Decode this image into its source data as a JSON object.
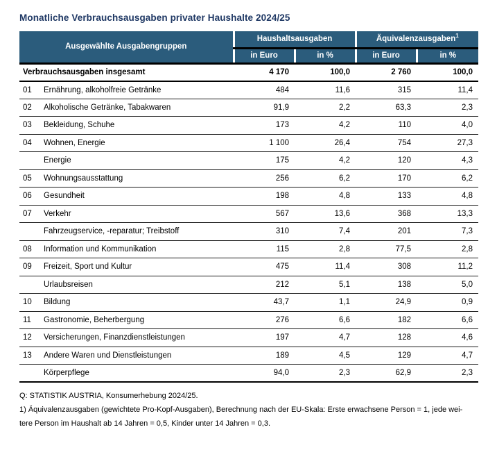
{
  "colors": {
    "header_bg": "#2B5C7C",
    "title_color": "#1F3864",
    "border_color": "#000000"
  },
  "chart_data": {
    "type": "table",
    "title": "Monatliche Verbrauchsausgaben privater Haushalte 2024/25",
    "header": {
      "row_header": "Ausgewählte Ausgabengruppen",
      "group1": "Haushaltsausgaben",
      "group2": "Äquivalenzausgaben",
      "group2_footnote_marker": "1",
      "sub_euro": "in Euro",
      "sub_pct": "in %"
    },
    "total_row": {
      "label": "Verbrauchsausgaben insgesamt",
      "hh_euro": "4 170",
      "hh_pct": "100,0",
      "aeq_euro": "2 760",
      "aeq_pct": "100,0"
    },
    "rows": [
      {
        "code": "01",
        "label": "Ernährung, alkoholfreie Getränke",
        "hh_euro": "484",
        "hh_pct": "11,6",
        "aeq_euro": "315",
        "aeq_pct": "11,4"
      },
      {
        "code": "02",
        "label": "Alkoholische Getränke, Tabakwaren",
        "hh_euro": "91,9",
        "hh_pct": "2,2",
        "aeq_euro": "63,3",
        "aeq_pct": "2,3"
      },
      {
        "code": "03",
        "label": "Bekleidung, Schuhe",
        "hh_euro": "173",
        "hh_pct": "4,2",
        "aeq_euro": "110",
        "aeq_pct": "4,0"
      },
      {
        "code": "04",
        "label": "Wohnen, Energie",
        "hh_euro": "1 100",
        "hh_pct": "26,4",
        "aeq_euro": "754",
        "aeq_pct": "27,3"
      },
      {
        "code": "",
        "label": "Energie",
        "hh_euro": "175",
        "hh_pct": "4,2",
        "aeq_euro": "120",
        "aeq_pct": "4,3"
      },
      {
        "code": "05",
        "label": "Wohnungsausstattung",
        "hh_euro": "256",
        "hh_pct": "6,2",
        "aeq_euro": "170",
        "aeq_pct": "6,2"
      },
      {
        "code": "06",
        "label": "Gesundheit",
        "hh_euro": "198",
        "hh_pct": "4,8",
        "aeq_euro": "133",
        "aeq_pct": "4,8"
      },
      {
        "code": "07",
        "label": "Verkehr",
        "hh_euro": "567",
        "hh_pct": "13,6",
        "aeq_euro": "368",
        "aeq_pct": "13,3"
      },
      {
        "code": "",
        "label": "Fahrzeugservice, -reparatur; Treibstoff",
        "hh_euro": "310",
        "hh_pct": "7,4",
        "aeq_euro": "201",
        "aeq_pct": "7,3"
      },
      {
        "code": "08",
        "label": "Information und Kommunikation",
        "hh_euro": "115",
        "hh_pct": "2,8",
        "aeq_euro": "77,5",
        "aeq_pct": "2,8"
      },
      {
        "code": "09",
        "label": "Freizeit, Sport und Kultur",
        "hh_euro": "475",
        "hh_pct": "11,4",
        "aeq_euro": "308",
        "aeq_pct": "11,2"
      },
      {
        "code": "",
        "label": "Urlaubsreisen",
        "hh_euro": "212",
        "hh_pct": "5,1",
        "aeq_euro": "138",
        "aeq_pct": "5,0"
      },
      {
        "code": "10",
        "label": "Bildung",
        "hh_euro": "43,7",
        "hh_pct": "1,1",
        "aeq_euro": "24,9",
        "aeq_pct": "0,9"
      },
      {
        "code": "11",
        "label": "Gastronomie, Beherbergung",
        "hh_euro": "276",
        "hh_pct": "6,6",
        "aeq_euro": "182",
        "aeq_pct": "6,6"
      },
      {
        "code": "12",
        "label": "Versicherungen, Finanzdienstleistungen",
        "hh_euro": "197",
        "hh_pct": "4,7",
        "aeq_euro": "128",
        "aeq_pct": "4,6"
      },
      {
        "code": "13",
        "label": "Andere Waren und Dienstleistungen",
        "hh_euro": "189",
        "hh_pct": "4,5",
        "aeq_euro": "129",
        "aeq_pct": "4,7"
      },
      {
        "code": "",
        "label": "Körperpflege",
        "hh_euro": "94,0",
        "hh_pct": "2,3",
        "aeq_euro": "62,9",
        "aeq_pct": "2,3"
      }
    ]
  },
  "footer": {
    "source": "Q: STATISTIK AUSTRIA, Konsumerhebung 2024/25.",
    "footnote_lines": [
      "1) Äquivalenzausgaben (gewichtete Pro-Kopf-Ausgaben), Berechnung nach der EU-Skala: Erste erwachsene Person = 1, jede wei-",
      "tere Person im Haushalt ab 14 Jahren = 0,5, Kinder unter 14 Jahren = 0,3."
    ]
  }
}
